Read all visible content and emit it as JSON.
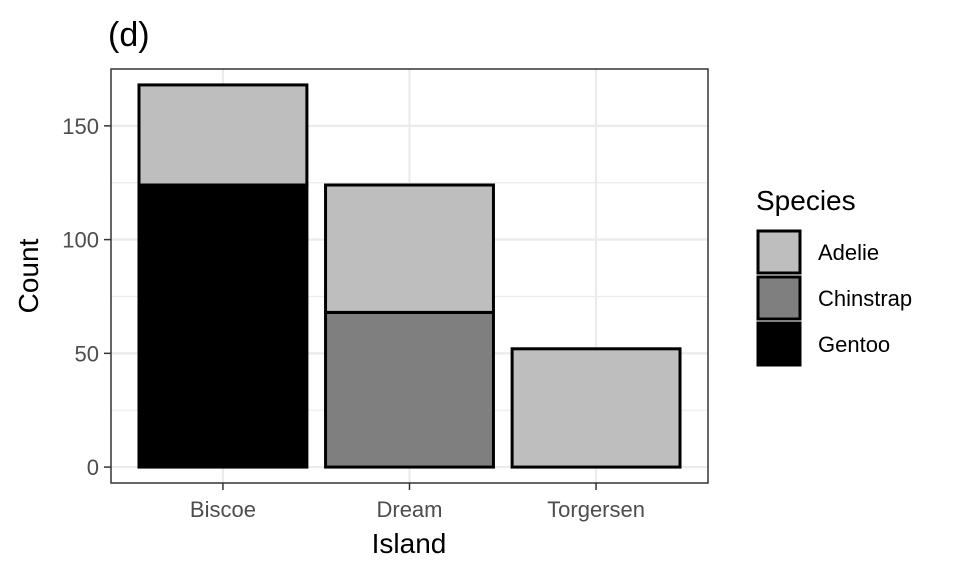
{
  "chart_data": {
    "type": "bar",
    "stacked": true,
    "title": "(d)",
    "xlabel": "Island",
    "ylabel": "Count",
    "categories": [
      "Biscoe",
      "Dream",
      "Torgersen"
    ],
    "series": [
      {
        "name": "Adelie",
        "values": [
          44,
          56,
          52
        ],
        "color": "#bebebe"
      },
      {
        "name": "Chinstrap",
        "values": [
          0,
          68,
          0
        ],
        "color": "#7f7f7f"
      },
      {
        "name": "Gentoo",
        "values": [
          124,
          0,
          0
        ],
        "color": "#000000"
      }
    ],
    "stack_order_bottom_to_top": [
      "Gentoo",
      "Chinstrap",
      "Adelie"
    ],
    "yticks": [
      0,
      50,
      100,
      150
    ],
    "ylim": [
      -7,
      175
    ],
    "grid": true,
    "legend": {
      "title": "Species",
      "position": "right"
    },
    "colors": {
      "grid": "#ebebeb",
      "panel_border": "#333333",
      "bar_outline": "#000000"
    }
  }
}
